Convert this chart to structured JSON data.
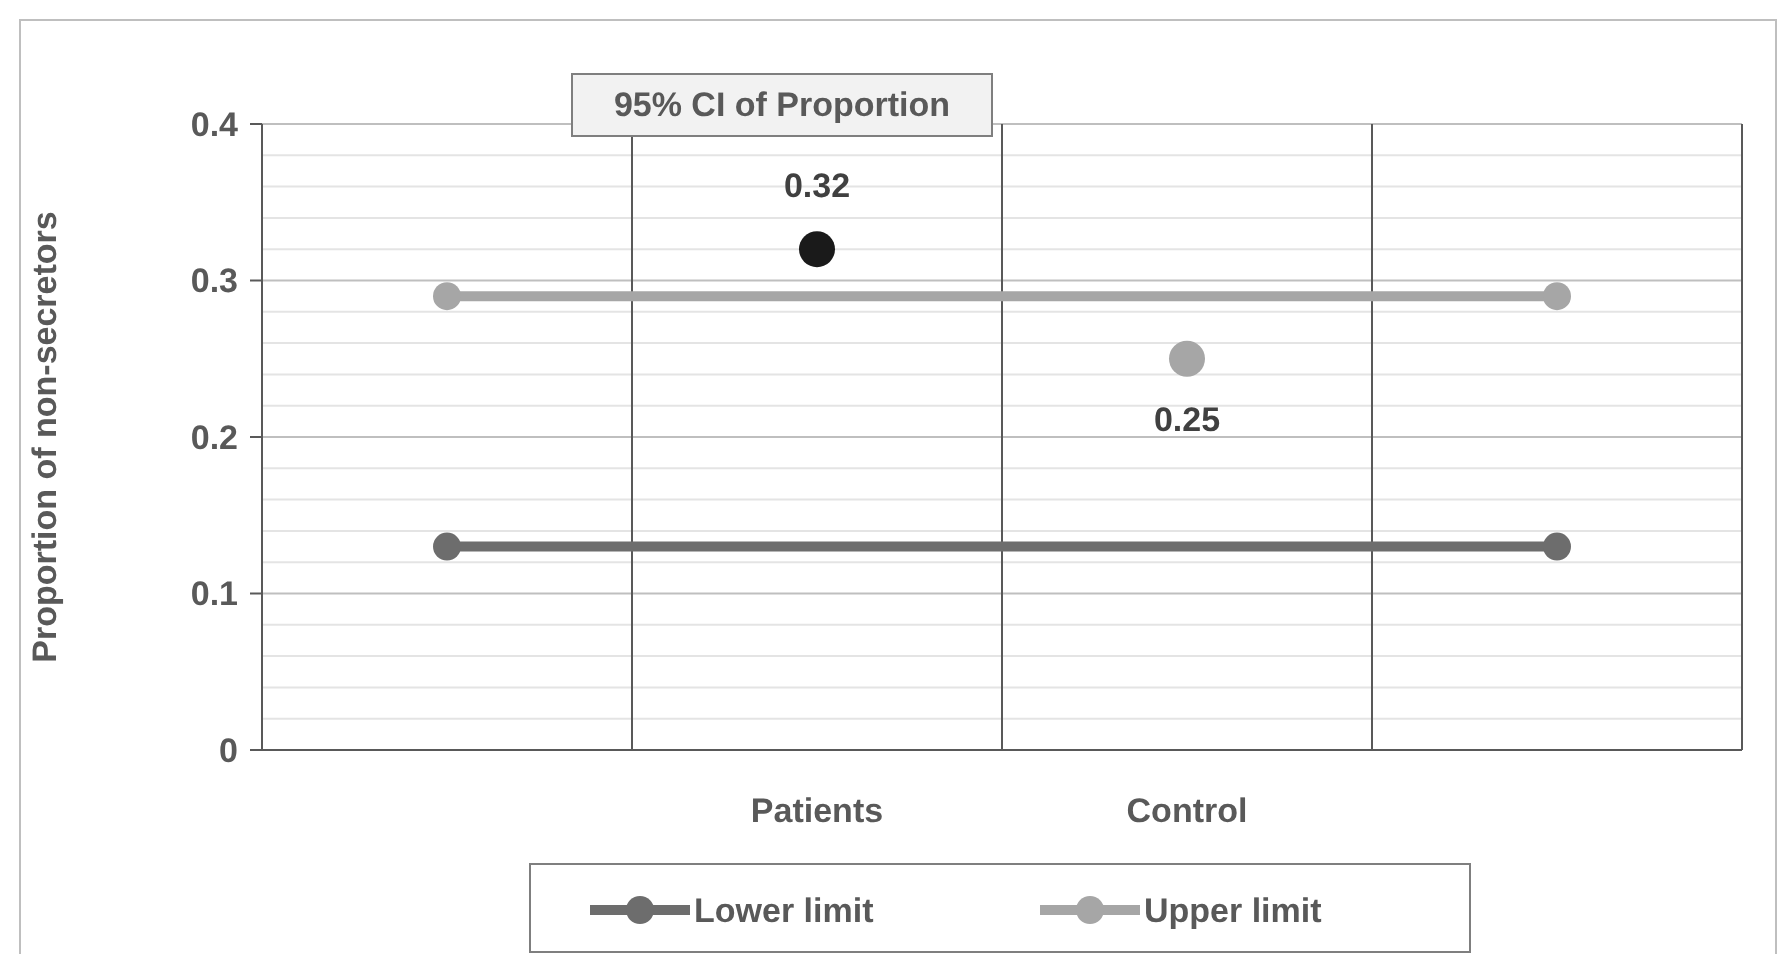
{
  "chart_data": {
    "type": "line",
    "title": "95% CI of Proportion",
    "ylabel": "Proportion of non-secretors",
    "categories": [
      null,
      "Patients",
      "Control",
      null
    ],
    "ylim": [
      0,
      0.4
    ],
    "yticks": [
      0,
      0.1,
      0.2,
      0.3,
      0.4
    ],
    "grid": true,
    "legend": "bottom",
    "marker": "circle",
    "series": [
      {
        "name": "Lower limit",
        "color": "#6d6d6d",
        "values": [
          0.13,
          null,
          null,
          0.13
        ]
      },
      {
        "name": "Upper limit",
        "color": "#a6a6a6",
        "values": [
          0.29,
          null,
          null,
          0.29
        ]
      },
      {
        "type": "scatter",
        "values": [
          null,
          0.32,
          0.25,
          null
        ],
        "colors": [
          null,
          "#1a1a1a",
          "#a6a6a6",
          null
        ],
        "data_labels": true
      }
    ]
  }
}
